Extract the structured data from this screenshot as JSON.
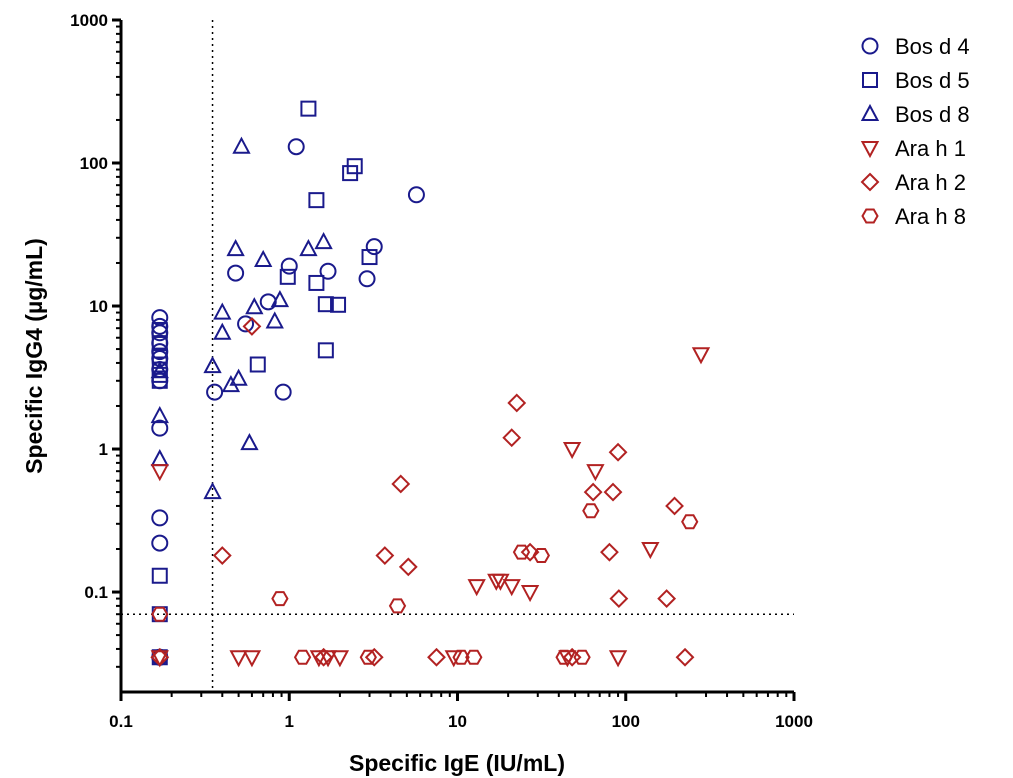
{
  "chart_data": {
    "type": "scatter",
    "xlabel": "Specific IgE (IU/mL)",
    "ylabel": "Specific IgG4 (µg/mL)",
    "x_scale": "log",
    "y_scale": "log",
    "xlim": [
      0.1,
      1000
    ],
    "ylim": [
      0.02,
      1000
    ],
    "x_ticks": [
      0.1,
      1,
      10,
      100,
      1000
    ],
    "x_tick_labels": [
      "0.1",
      "1",
      "10",
      "100",
      "1000"
    ],
    "y_ticks": [
      0.1,
      1,
      10,
      100,
      1000
    ],
    "y_tick_labels": [
      "0.1",
      "1",
      "10",
      "100",
      "1000"
    ],
    "threshold_x": 0.35,
    "threshold_y": 0.07,
    "grid": false,
    "legend_position": "right",
    "series": [
      {
        "name": "Bos d 4",
        "marker": "circle",
        "color": "#1a1a8c",
        "points": [
          [
            0.17,
            8.3
          ],
          [
            0.17,
            7.2
          ],
          [
            0.17,
            6.5
          ],
          [
            0.17,
            5.5
          ],
          [
            0.17,
            4.8
          ],
          [
            0.17,
            4.3
          ],
          [
            0.17,
            3.6
          ],
          [
            0.17,
            3.0
          ],
          [
            0.17,
            1.4
          ],
          [
            0.17,
            0.33
          ],
          [
            0.17,
            0.22
          ],
          [
            0.17,
            0.035
          ],
          [
            0.36,
            2.5
          ],
          [
            0.48,
            17
          ],
          [
            0.55,
            7.5
          ],
          [
            0.75,
            10.7
          ],
          [
            0.92,
            2.5
          ],
          [
            1.0,
            19
          ],
          [
            1.1,
            130
          ],
          [
            1.7,
            17.5
          ],
          [
            2.9,
            15.5
          ],
          [
            3.2,
            26
          ],
          [
            5.7,
            60
          ]
        ]
      },
      {
        "name": "Bos d 5",
        "marker": "square",
        "color": "#1a1a8c",
        "points": [
          [
            0.17,
            6.8
          ],
          [
            0.17,
            5.5
          ],
          [
            0.17,
            4.5
          ],
          [
            0.17,
            3.9
          ],
          [
            0.17,
            3.3
          ],
          [
            0.17,
            3.0
          ],
          [
            0.17,
            0.13
          ],
          [
            0.17,
            0.07
          ],
          [
            0.17,
            0.035
          ],
          [
            0.65,
            3.9
          ],
          [
            0.98,
            16
          ],
          [
            1.3,
            240
          ],
          [
            1.45,
            55
          ],
          [
            1.45,
            14.5
          ],
          [
            1.65,
            10.3
          ],
          [
            1.65,
            4.9
          ],
          [
            1.95,
            10.2
          ],
          [
            2.3,
            85
          ],
          [
            2.45,
            95
          ],
          [
            3.0,
            22
          ]
        ]
      },
      {
        "name": "Bos d 8",
        "marker": "triangle-up",
        "color": "#1a1a8c",
        "points": [
          [
            0.17,
            3.5
          ],
          [
            0.17,
            1.7
          ],
          [
            0.17,
            0.85
          ],
          [
            0.35,
            3.8
          ],
          [
            0.35,
            0.5
          ],
          [
            0.4,
            9
          ],
          [
            0.4,
            6.5
          ],
          [
            0.45,
            2.8
          ],
          [
            0.48,
            25
          ],
          [
            0.5,
            3.1
          ],
          [
            0.52,
            130
          ],
          [
            0.58,
            1.1
          ],
          [
            0.62,
            9.8
          ],
          [
            0.7,
            21
          ],
          [
            0.82,
            7.8
          ],
          [
            0.88,
            11
          ],
          [
            1.3,
            25
          ],
          [
            1.6,
            28
          ]
        ]
      },
      {
        "name": "Ara h 1",
        "marker": "triangle-down",
        "color": "#b22222",
        "points": [
          [
            0.17,
            0.7
          ],
          [
            0.17,
            0.035
          ],
          [
            0.5,
            0.035
          ],
          [
            0.6,
            0.035
          ],
          [
            1.5,
            0.035
          ],
          [
            1.7,
            0.035
          ],
          [
            2.0,
            0.035
          ],
          [
            9.5,
            0.035
          ],
          [
            13,
            0.11
          ],
          [
            17,
            0.12
          ],
          [
            18,
            0.12
          ],
          [
            21,
            0.11
          ],
          [
            27,
            0.1
          ],
          [
            45,
            0.035
          ],
          [
            48,
            1.0
          ],
          [
            66,
            0.7
          ],
          [
            90,
            0.035
          ],
          [
            140,
            0.2
          ],
          [
            280,
            4.6
          ]
        ]
      },
      {
        "name": "Ara h 2",
        "marker": "diamond",
        "color": "#b22222",
        "points": [
          [
            0.17,
            0.035
          ],
          [
            0.4,
            0.18
          ],
          [
            0.6,
            7.2
          ],
          [
            1.6,
            0.035
          ],
          [
            3.2,
            0.035
          ],
          [
            3.7,
            0.18
          ],
          [
            4.6,
            0.57
          ],
          [
            5.1,
            0.15
          ],
          [
            7.5,
            0.035
          ],
          [
            21,
            1.2
          ],
          [
            22.5,
            2.1
          ],
          [
            27,
            0.19
          ],
          [
            48,
            0.035
          ],
          [
            64,
            0.5
          ],
          [
            80,
            0.19
          ],
          [
            84,
            0.5
          ],
          [
            90,
            0.95
          ],
          [
            91,
            0.09
          ],
          [
            175,
            0.09
          ],
          [
            195,
            0.4
          ],
          [
            225,
            0.035
          ]
        ]
      },
      {
        "name": "Ara h 8",
        "marker": "hexagon",
        "color": "#b22222",
        "points": [
          [
            0.17,
            0.07
          ],
          [
            0.88,
            0.09
          ],
          [
            1.2,
            0.035
          ],
          [
            2.95,
            0.035
          ],
          [
            4.4,
            0.08
          ],
          [
            10.5,
            0.035
          ],
          [
            12.5,
            0.035
          ],
          [
            24,
            0.19
          ],
          [
            31.5,
            0.18
          ],
          [
            43,
            0.035
          ],
          [
            55,
            0.035
          ],
          [
            62,
            0.37
          ],
          [
            240,
            0.31
          ]
        ]
      }
    ]
  }
}
